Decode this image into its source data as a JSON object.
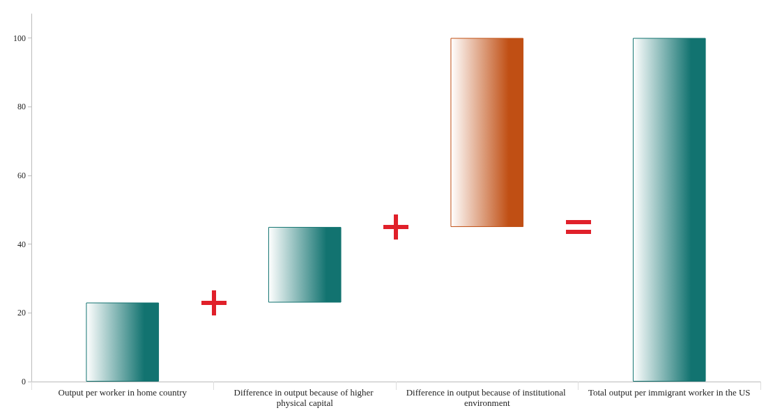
{
  "chart_data": {
    "type": "bar",
    "categories": [
      "Output per worker in home country",
      "Difference in output because of higher physical capital",
      "Difference in output because of institutional environment",
      "Total output per immigrant worker in the US"
    ],
    "values": [
      23,
      22,
      55,
      100
    ],
    "base": [
      0,
      23,
      45,
      0
    ],
    "colors": [
      "#127370",
      "#127370",
      "#c04f14",
      "#127370"
    ],
    "ylim": [
      0,
      107
    ],
    "yticks": [
      0,
      20,
      40,
      60,
      80,
      100
    ],
    "grid": false
  }
}
